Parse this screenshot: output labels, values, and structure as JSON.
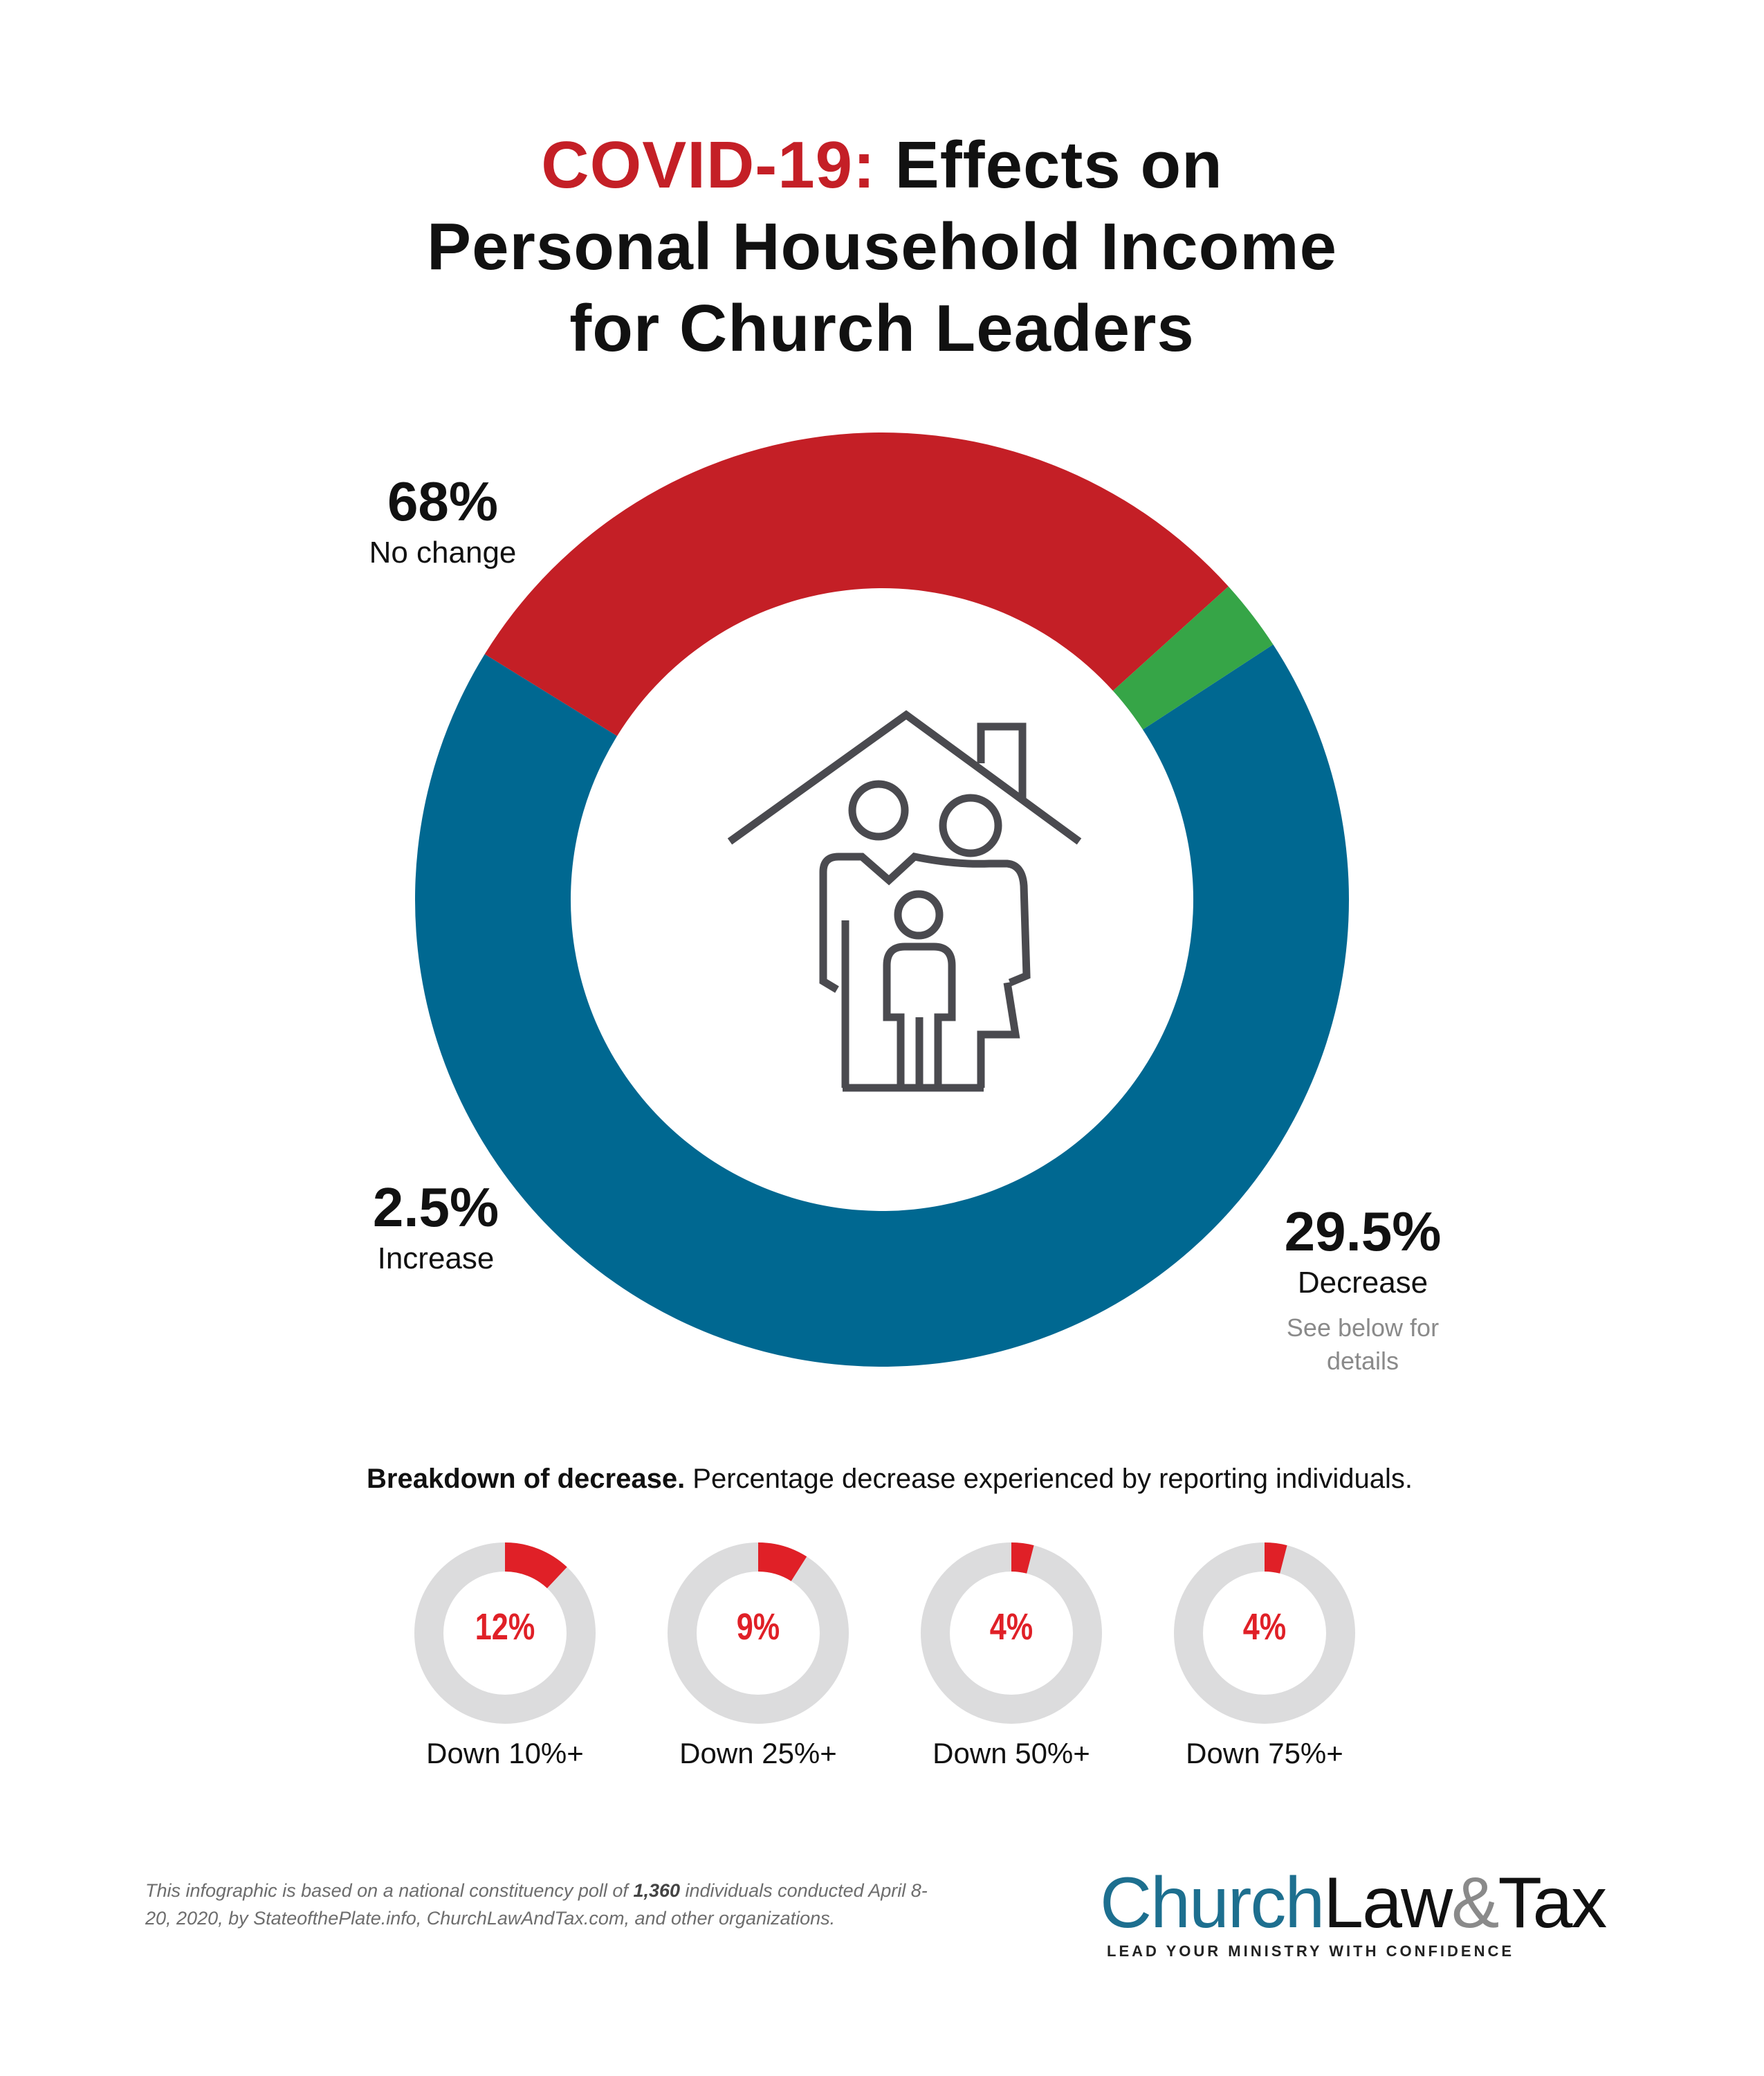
{
  "title": {
    "accent": "COVID-19:",
    "line1_rest": " Effects on",
    "line2": "Personal Household Income",
    "line3": "for Church Leaders"
  },
  "colors": {
    "no_change": "#006891",
    "decrease": "#c41f26",
    "increase": "#36a547",
    "small_track": "#dcdcdd",
    "small_fill": "#e02027",
    "icon_stroke": "#4a4a4f"
  },
  "chart_data": [
    {
      "type": "pie",
      "style": "donut",
      "categories": [
        "No change",
        "Decrease",
        "Increase"
      ],
      "values": [
        68,
        29.5,
        2.5
      ],
      "value_labels": [
        "68%",
        "29.5%",
        "2.5%"
      ],
      "unit": "%",
      "center_icon": "family-house-icon"
    },
    {
      "type": "pie",
      "style": "small-donuts",
      "categories": [
        "Down 10%+",
        "Down 25%+",
        "Down 50%+",
        "Down 75%+"
      ],
      "values": [
        12,
        9,
        4,
        4
      ],
      "value_labels": [
        "12%",
        "9%",
        "4%",
        "4%"
      ],
      "unit": "%"
    }
  ],
  "main_labels": {
    "no_change": {
      "pct": "68%",
      "label": "No change"
    },
    "increase": {
      "pct": "2.5%",
      "label": "Increase"
    },
    "decrease": {
      "pct": "29.5%",
      "label": "Decrease",
      "note_line1": "See below for",
      "note_line2": "details"
    }
  },
  "breakdown": {
    "heading_bold": "Breakdown of decrease.",
    "heading_rest": " Percentage decrease experienced by reporting individuals."
  },
  "footnote": {
    "part1": "This infographic is based on a national constituency poll of ",
    "bold": "1,360",
    "part2": " individuals conducted April 8-20, 2020, by StateofthePlate.info, ChurchLawAndTax.com, and other organizations."
  },
  "logo": {
    "church": "Church",
    "law": "Law",
    "amp": "&",
    "tax": "Tax",
    "tagline": "LEAD YOUR MINISTRY WITH CONFIDENCE"
  }
}
